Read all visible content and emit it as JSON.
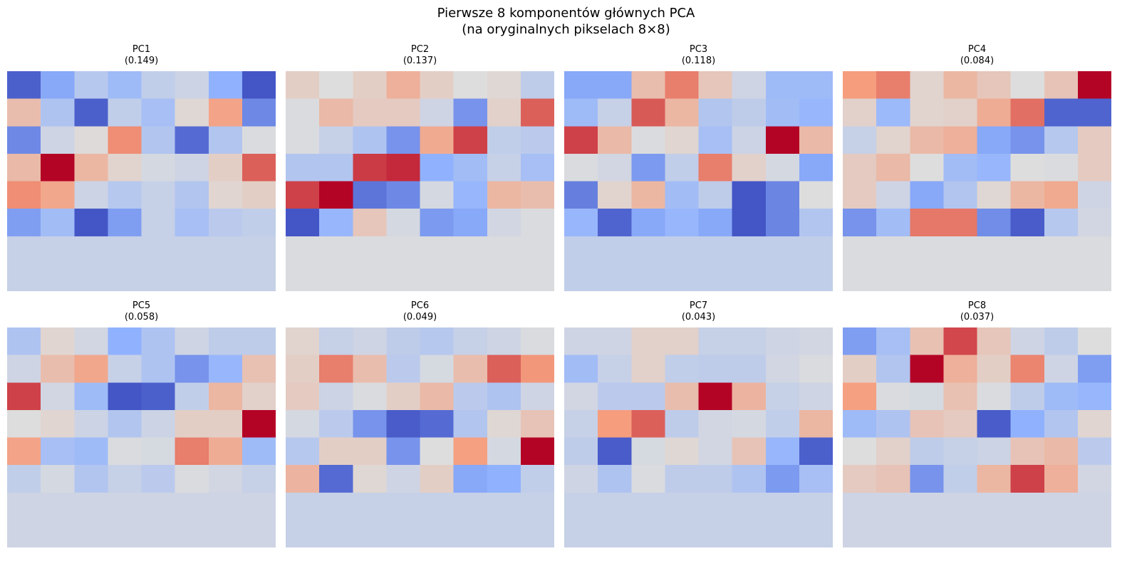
{
  "suptitle": {
    "line1": "Pierwsze 8 komponentów głównych PCA",
    "line2": "(na oryginalnych pikselach 8×8)"
  },
  "chart_data": {
    "type": "heatmap",
    "colormap": "coolwarm",
    "grid": false,
    "panels": [
      {
        "title": "PC1",
        "subtitle": "(0.149)",
        "values": [
          [
            -0.9,
            -0.55,
            -0.25,
            -0.4,
            -0.18,
            -0.12,
            -0.5,
            -0.95
          ],
          [
            0.25,
            -0.3,
            -0.9,
            -0.18,
            -0.35,
            0.05,
            0.45,
            -0.7
          ],
          [
            -0.7,
            -0.1,
            0.02,
            0.55,
            -0.28,
            -0.85,
            -0.28,
            -0.02
          ],
          [
            0.28,
            1.0,
            0.3,
            0.08,
            -0.06,
            -0.1,
            0.12,
            0.7
          ],
          [
            0.55,
            0.42,
            -0.12,
            -0.25,
            -0.15,
            -0.28,
            0.06,
            0.12
          ],
          [
            -0.6,
            -0.38,
            -0.95,
            -0.6,
            -0.15,
            -0.35,
            -0.22,
            -0.18
          ],
          [
            -0.15,
            -0.15,
            -0.15,
            -0.15,
            -0.15,
            -0.15,
            -0.15,
            -0.15
          ],
          [
            -0.15,
            -0.15,
            -0.15,
            -0.15,
            -0.15,
            -0.15,
            -0.15,
            -0.15
          ]
        ]
      },
      {
        "title": "PC2",
        "subtitle": "(0.137)",
        "values": [
          [
            0.12,
            0.0,
            0.12,
            0.35,
            0.12,
            0.0,
            0.05,
            -0.2
          ],
          [
            -0.02,
            0.28,
            0.15,
            0.15,
            -0.1,
            -0.65,
            0.1,
            0.7
          ],
          [
            -0.02,
            -0.15,
            -0.3,
            -0.65,
            0.4,
            0.8,
            -0.18,
            -0.22
          ],
          [
            -0.28,
            -0.28,
            0.82,
            0.88,
            -0.5,
            -0.38,
            -0.15,
            -0.35
          ],
          [
            0.8,
            1.0,
            -0.8,
            -0.7,
            -0.06,
            -0.45,
            0.3,
            0.25
          ],
          [
            -0.95,
            -0.45,
            0.18,
            -0.06,
            -0.62,
            -0.55,
            -0.08,
            -0.02
          ],
          [
            -0.02,
            -0.02,
            -0.02,
            -0.02,
            -0.02,
            -0.02,
            -0.02,
            -0.02
          ],
          [
            -0.02,
            -0.02,
            -0.02,
            -0.02,
            -0.02,
            -0.02,
            -0.02,
            -0.02
          ]
        ]
      },
      {
        "title": "PC3",
        "subtitle": "(0.118)",
        "values": [
          [
            -0.55,
            -0.55,
            0.25,
            0.6,
            0.18,
            -0.1,
            -0.4,
            -0.4
          ],
          [
            -0.4,
            -0.15,
            0.72,
            0.3,
            -0.28,
            -0.2,
            -0.38,
            -0.45
          ],
          [
            0.8,
            0.28,
            -0.02,
            0.06,
            -0.35,
            -0.12,
            1.0,
            0.28
          ],
          [
            -0.02,
            -0.08,
            -0.62,
            -0.18,
            0.6,
            0.1,
            -0.06,
            -0.55
          ],
          [
            -0.75,
            0.08,
            0.3,
            -0.38,
            -0.2,
            -0.95,
            -0.72,
            0.0
          ],
          [
            -0.45,
            -0.88,
            -0.55,
            -0.45,
            -0.55,
            -0.95,
            -0.72,
            -0.28
          ],
          [
            -0.18,
            -0.18,
            -0.18,
            -0.18,
            -0.18,
            -0.18,
            -0.18,
            -0.18
          ],
          [
            -0.18,
            -0.18,
            -0.18,
            -0.18,
            -0.18,
            -0.18,
            -0.18,
            -0.18
          ]
        ]
      },
      {
        "title": "PC4",
        "subtitle": "(0.084)",
        "values": [
          [
            0.5,
            0.6,
            0.08,
            0.3,
            0.18,
            0.0,
            0.2,
            1.0
          ],
          [
            0.1,
            -0.42,
            0.08,
            0.1,
            0.38,
            0.65,
            -0.88,
            -0.88
          ],
          [
            -0.15,
            0.08,
            0.28,
            0.35,
            -0.55,
            -0.65,
            -0.25,
            0.15
          ],
          [
            0.15,
            0.28,
            0.0,
            -0.38,
            -0.45,
            0.0,
            -0.02,
            0.15
          ],
          [
            0.15,
            -0.1,
            -0.55,
            -0.28,
            0.05,
            0.3,
            0.4,
            -0.1
          ],
          [
            -0.65,
            -0.38,
            0.62,
            0.62,
            -0.68,
            -0.92,
            -0.25,
            -0.08
          ],
          [
            -0.02,
            -0.02,
            -0.02,
            -0.02,
            -0.02,
            -0.02,
            -0.02,
            -0.02
          ],
          [
            -0.02,
            -0.02,
            -0.02,
            -0.02,
            -0.02,
            -0.02,
            -0.02,
            -0.02
          ]
        ]
      },
      {
        "title": "PC5",
        "subtitle": "(0.058)",
        "values": [
          [
            -0.3,
            0.06,
            -0.08,
            -0.5,
            -0.3,
            -0.1,
            -0.2,
            -0.2
          ],
          [
            -0.1,
            0.25,
            0.42,
            -0.15,
            -0.3,
            -0.65,
            -0.45,
            0.22
          ],
          [
            0.8,
            -0.08,
            -0.4,
            -0.95,
            -0.9,
            -0.18,
            0.3,
            0.1
          ],
          [
            0.0,
            0.06,
            -0.12,
            -0.28,
            -0.12,
            0.12,
            0.12,
            1.0
          ],
          [
            0.45,
            -0.35,
            -0.4,
            -0.02,
            -0.05,
            0.6,
            0.38,
            -0.4
          ],
          [
            -0.18,
            -0.06,
            -0.28,
            -0.15,
            -0.22,
            -0.02,
            -0.08,
            -0.15
          ],
          [
            -0.1,
            -0.1,
            -0.1,
            -0.1,
            -0.1,
            -0.1,
            -0.1,
            -0.1
          ],
          [
            -0.1,
            -0.1,
            -0.1,
            -0.1,
            -0.1,
            -0.1,
            -0.1,
            -0.1
          ]
        ]
      },
      {
        "title": "PC6",
        "subtitle": "(0.049)",
        "values": [
          [
            0.08,
            -0.15,
            -0.1,
            -0.2,
            -0.25,
            -0.15,
            -0.1,
            -0.02
          ],
          [
            0.12,
            0.6,
            0.25,
            -0.22,
            -0.05,
            0.25,
            0.7,
            0.52
          ],
          [
            0.15,
            -0.12,
            -0.02,
            0.12,
            0.28,
            -0.22,
            -0.3,
            -0.1
          ],
          [
            -0.06,
            -0.22,
            -0.65,
            -0.92,
            -0.85,
            -0.28,
            0.05,
            0.2
          ],
          [
            -0.25,
            0.12,
            0.12,
            -0.65,
            0.0,
            0.48,
            -0.06,
            1.0
          ],
          [
            0.32,
            -0.85,
            0.05,
            -0.1,
            0.12,
            -0.55,
            -0.5,
            -0.18
          ],
          [
            -0.15,
            -0.15,
            -0.15,
            -0.15,
            -0.15,
            -0.15,
            -0.15,
            -0.15
          ],
          [
            -0.15,
            -0.15,
            -0.15,
            -0.15,
            -0.15,
            -0.15,
            -0.15,
            -0.15
          ]
        ]
      },
      {
        "title": "PC7",
        "subtitle": "(0.043)",
        "values": [
          [
            -0.1,
            -0.1,
            0.1,
            0.1,
            -0.15,
            -0.15,
            -0.1,
            -0.08
          ],
          [
            -0.38,
            -0.15,
            0.1,
            -0.18,
            -0.2,
            -0.2,
            -0.08,
            -0.02
          ],
          [
            -0.08,
            -0.22,
            -0.22,
            0.25,
            1.0,
            0.32,
            -0.15,
            -0.1
          ],
          [
            -0.15,
            0.5,
            0.7,
            -0.2,
            -0.08,
            -0.06,
            -0.18,
            0.3
          ],
          [
            -0.2,
            -0.92,
            -0.05,
            0.05,
            -0.08,
            0.2,
            -0.45,
            -0.9
          ],
          [
            -0.1,
            -0.3,
            -0.02,
            -0.2,
            -0.2,
            -0.3,
            -0.62,
            -0.35
          ],
          [
            -0.15,
            -0.15,
            -0.15,
            -0.15,
            -0.15,
            -0.15,
            -0.15,
            -0.15
          ],
          [
            -0.15,
            -0.15,
            -0.15,
            -0.15,
            -0.15,
            -0.15,
            -0.15,
            -0.15
          ]
        ]
      },
      {
        "title": "PC8",
        "subtitle": "(0.037)",
        "values": [
          [
            -0.6,
            -0.35,
            0.22,
            0.78,
            0.18,
            -0.1,
            -0.2,
            0.0
          ],
          [
            0.12,
            -0.28,
            1.0,
            0.35,
            0.12,
            0.58,
            -0.1,
            -0.6
          ],
          [
            0.48,
            -0.02,
            -0.05,
            0.22,
            -0.02,
            -0.2,
            -0.4,
            -0.45
          ],
          [
            -0.4,
            -0.3,
            0.2,
            0.15,
            -0.92,
            -0.5,
            -0.28,
            0.06
          ],
          [
            0.0,
            0.1,
            -0.2,
            -0.15,
            -0.12,
            0.2,
            0.28,
            -0.22
          ],
          [
            0.15,
            0.2,
            -0.65,
            -0.18,
            0.3,
            0.8,
            0.35,
            -0.08
          ],
          [
            -0.1,
            -0.1,
            -0.1,
            -0.1,
            -0.1,
            -0.1,
            -0.1,
            -0.1
          ],
          [
            -0.1,
            -0.1,
            -0.1,
            -0.1,
            -0.1,
            -0.1,
            -0.1,
            -0.1
          ]
        ]
      }
    ]
  }
}
